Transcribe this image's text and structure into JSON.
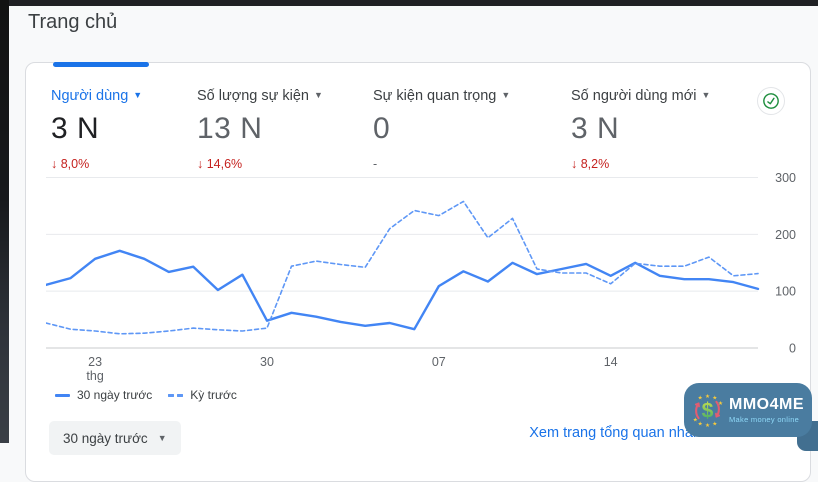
{
  "page": {
    "title": "Trang chủ",
    "background": "#f8f9fa",
    "accent": "#1a73e8"
  },
  "metrics": [
    {
      "label": "Người dùng",
      "value": "3 N",
      "delta": "↓ 8,0%",
      "selected": true
    },
    {
      "label": "Số lượng sự kiện",
      "value": "13 N",
      "delta": "↓ 14,6%",
      "selected": false
    },
    {
      "label": "Sự kiện quan trọng",
      "value": "0",
      "delta": "-",
      "selected": false
    },
    {
      "label": "Số người dùng mới",
      "value": "3 N",
      "delta": "↓ 8,2%",
      "selected": false
    }
  ],
  "chart_data": {
    "type": "line",
    "title": "",
    "xlabel": "",
    "ylabel": "",
    "ylim": [
      0,
      315
    ],
    "y_ticks": [
      0,
      100,
      200,
      300
    ],
    "grid": "horizontal",
    "legend_position": "bottom-left",
    "x_ticks": [
      {
        "index": 2,
        "label": "23",
        "sublabel": "thg"
      },
      {
        "index": 9,
        "label": "30"
      },
      {
        "index": 16,
        "label": "07"
      },
      {
        "index": 23,
        "label": "14"
      }
    ],
    "series": [
      {
        "name": "30 ngày trước",
        "style": "solid",
        "color": "#4285f4",
        "values": [
          111,
          123,
          157,
          171,
          157,
          134,
          143,
          102,
          129,
          48,
          62,
          55,
          46,
          39,
          44,
          33,
          109,
          135,
          117,
          150,
          130,
          139,
          148,
          127,
          150,
          127,
          121,
          121,
          116,
          104
        ]
      },
      {
        "name": "Kỳ trước",
        "style": "dashed",
        "color": "#5e97f6",
        "values": [
          44,
          33,
          30,
          25,
          26,
          30,
          35,
          32,
          30,
          35,
          144,
          153,
          147,
          142,
          210,
          242,
          233,
          258,
          194,
          228,
          139,
          132,
          132,
          113,
          149,
          144,
          144,
          160,
          127,
          131
        ]
      }
    ]
  },
  "controls": {
    "date_range_label": "30 ngày trước",
    "caret": "▼"
  },
  "footer_link": {
    "label": "Xem trang tổng quan nhanh về báo cáo",
    "arrow": "→"
  },
  "status_icon": {
    "name": "check-circle",
    "color": "#1e8e3e"
  },
  "watermark": {
    "title": "MMO4ME",
    "subtitle": "Make money online",
    "symbol": "$"
  }
}
